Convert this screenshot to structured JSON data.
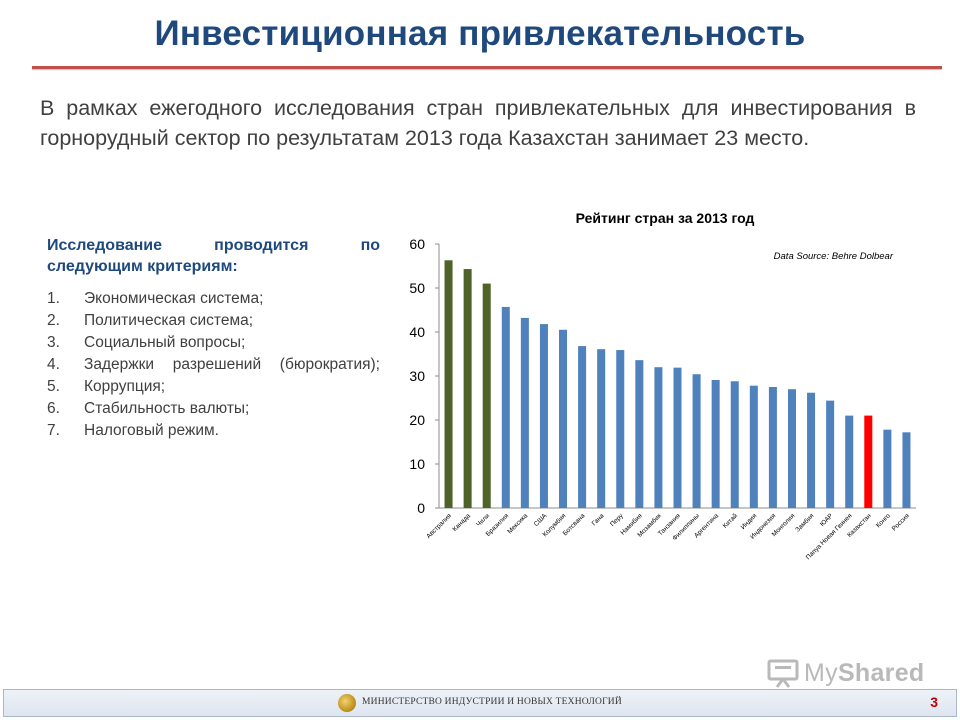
{
  "slide": {
    "title": "Инвестиционная привлекательность",
    "intro": "В рамках ежегодного исследования стран привлекательных для инвестирования в горнорудный сектор по результатам 2013 года Казахстан занимает 23 место.",
    "criteria_title": "Исследование проводится по следующим критериям:",
    "criteria": [
      {
        "num": "1.",
        "text": "Экономическая система;"
      },
      {
        "num": "2.",
        "text": "Политическая система;"
      },
      {
        "num": "3.",
        "text": "Социальный вопросы;"
      },
      {
        "num": "4.",
        "text": "Задержки разрешений (бюрократия);"
      },
      {
        "num": "5.",
        "text": "Коррупция;"
      },
      {
        "num": "6.",
        "text": "Стабильность валюты;"
      },
      {
        "num": "7.",
        "text": "Налоговый режим."
      }
    ]
  },
  "footer": {
    "ministry": "МИНИСТЕРСТВО ИНДУСТРИИ И НОВЫХ ТЕХНОЛОГИЙ",
    "page": "3"
  },
  "watermark": {
    "prefix": "My",
    "suffix": "Shared"
  },
  "colors": {
    "title": "#1f497d",
    "rule": "#c0504d",
    "bar_default": "#4f81bd",
    "bar_top": "#4f6228",
    "bar_highlight": "#ff0000"
  },
  "chart_data": {
    "type": "bar",
    "title": "Рейтинг стран за 2013 год",
    "source_note": "Data Source: Behre Dolbear",
    "ylim": [
      0,
      60
    ],
    "yticks": [
      0,
      10,
      20,
      30,
      40,
      50,
      60
    ],
    "grid": false,
    "categories": [
      "Австралия",
      "Канада",
      "Чили",
      "Бразилия",
      "Мексика",
      "США",
      "Колумбия",
      "Ботсвана",
      "Гана",
      "Перу",
      "Намибия",
      "Мозамбик",
      "Танзания",
      "Филиппины",
      "Аргентина",
      "Китай",
      "Индия",
      "Индонезия",
      "Монголия",
      "Замбия",
      "ЮАР",
      "Папуа Новая Гвинея",
      "Казахстан",
      "Конго",
      "Россия"
    ],
    "values": [
      56.3,
      54.3,
      51,
      45.7,
      43.2,
      41.8,
      40.5,
      36.8,
      36.1,
      35.9,
      33.6,
      32,
      31.9,
      30.4,
      29.1,
      28.8,
      27.8,
      27.5,
      27,
      26.2,
      24.4,
      21,
      21,
      17.8,
      17.2
    ],
    "bar_groups": [
      "top",
      "top",
      "top",
      "default",
      "default",
      "default",
      "default",
      "default",
      "default",
      "default",
      "default",
      "default",
      "default",
      "default",
      "default",
      "default",
      "default",
      "default",
      "default",
      "default",
      "default",
      "default",
      "highlight",
      "default",
      "default"
    ]
  }
}
